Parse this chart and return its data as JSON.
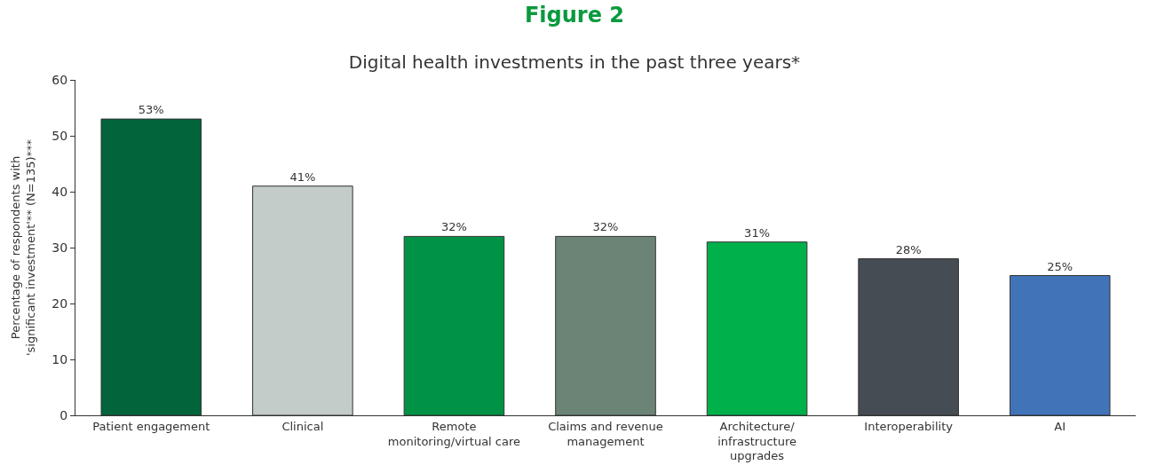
{
  "chart_data": {
    "type": "bar",
    "title": "Figure 2",
    "subtitle": "Digital health investments in the past three years*",
    "ylabel": "Percentage of respondents with\n'significant investment'** (N=135)***",
    "categories": [
      "Patient engagement",
      "Clinical",
      "Remote\nmonitoring/virtual care",
      "Claims and revenue\nmanagement",
      "Architecture/\ninfrastructure\nupgrades",
      "Interoperability",
      "AI"
    ],
    "values": [
      53,
      41,
      32,
      32,
      31,
      28,
      25
    ],
    "value_labels": [
      "53%",
      "41%",
      "32%",
      "32%",
      "31%",
      "28%",
      "25%"
    ],
    "colors": [
      "#02643a",
      "#c3ccc8",
      "#009245",
      "#6b8476",
      "#00b04a",
      "#454c53",
      "#4173b9"
    ],
    "ylim": [
      0,
      60
    ],
    "yticks": [
      0,
      10,
      20,
      30,
      40,
      50,
      60
    ]
  }
}
